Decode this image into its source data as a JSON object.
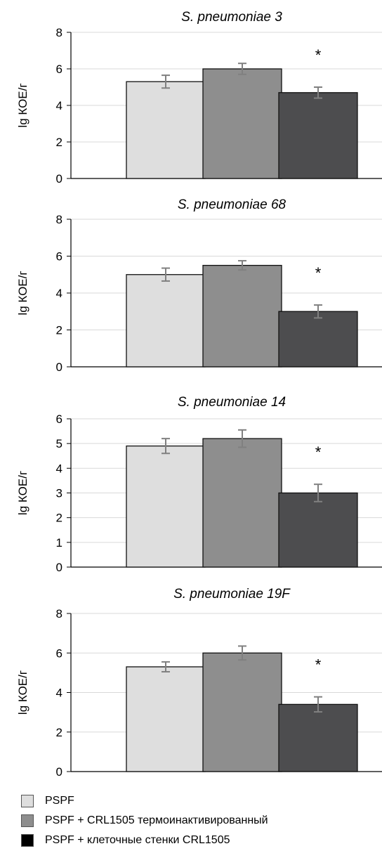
{
  "chart_data": [
    {
      "type": "bar",
      "title": "S. pneumoniae 3",
      "ylabel": "lg КОЕ/г",
      "ylim": [
        0,
        8
      ],
      "yticks": [
        0,
        2,
        4,
        6,
        8
      ],
      "grid": true,
      "series": [
        {
          "name": "PSPF",
          "value": 5.3,
          "error": 0.35
        },
        {
          "name": "PSPF + CRL1505 термоинактивированный",
          "value": 6.0,
          "error": 0.3
        },
        {
          "name": "PSPF + клеточные стенки CRL1505",
          "value": 4.7,
          "error": 0.3
        }
      ],
      "annotation": "*"
    },
    {
      "type": "bar",
      "title": "S. pneumoniae 68",
      "ylabel": "lg КОЕ/г",
      "ylim": [
        0,
        8
      ],
      "yticks": [
        0,
        2,
        4,
        6,
        8
      ],
      "grid": true,
      "series": [
        {
          "name": "PSPF",
          "value": 5.0,
          "error": 0.35
        },
        {
          "name": "PSPF + CRL1505 термоинактивированный",
          "value": 5.5,
          "error": 0.25
        },
        {
          "name": "PSPF + клеточные стенки CRL1505",
          "value": 3.0,
          "error": 0.35
        }
      ],
      "annotation": "*"
    },
    {
      "type": "bar",
      "title": "S. pneumoniae 14",
      "ylabel": "lg КОЕ/г",
      "ylim": [
        0,
        6
      ],
      "yticks": [
        0,
        1,
        2,
        3,
        4,
        5,
        6
      ],
      "grid": true,
      "series": [
        {
          "name": "PSPF",
          "value": 4.9,
          "error": 0.3
        },
        {
          "name": "PSPF + CRL1505 термоинактивированный",
          "value": 5.2,
          "error": 0.35
        },
        {
          "name": "PSPF + клеточные стенки CRL1505",
          "value": 3.0,
          "error": 0.35
        }
      ],
      "annotation": "*"
    },
    {
      "type": "bar",
      "title": "S. pneumoniae 19F",
      "ylabel": "lg КОЕ/г",
      "ylim": [
        0,
        8
      ],
      "yticks": [
        0,
        2,
        4,
        6,
        8
      ],
      "grid": true,
      "series": [
        {
          "name": "PSPF",
          "value": 5.3,
          "error": 0.25
        },
        {
          "name": "PSPF + CRL1505 термоинактивированный",
          "value": 6.0,
          "error": 0.35
        },
        {
          "name": "PSPF + клеточные стенки CRL1505",
          "value": 3.4,
          "error": 0.38
        }
      ],
      "annotation": "*"
    }
  ],
  "legend": {
    "placement": "bottom",
    "items": [
      {
        "label": "PSPF",
        "color": "#dedede"
      },
      {
        "label": "PSPF + CRL1505 термоинактивированный",
        "color": "#8e8e8e"
      },
      {
        "label": "PSPF + клеточные стенки CRL1505",
        "color": "#000000"
      }
    ]
  },
  "colors": {
    "bar_fills": [
      "#dedede",
      "#8e8e8e",
      "#4d4d4f"
    ],
    "bar_outline": "#111111",
    "error_bar": "#808080",
    "grid": "#d9d9d9",
    "axis": "#000000"
  }
}
